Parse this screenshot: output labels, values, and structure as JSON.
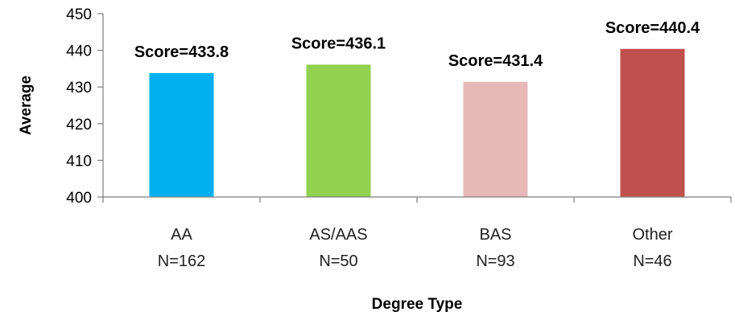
{
  "chart_data": {
    "type": "bar",
    "categories": [
      "AA",
      "AS/AAS",
      "BAS",
      "Other"
    ],
    "category_counts": [
      "N=162",
      "N=50",
      "N=93",
      "N=46"
    ],
    "values": [
      433.8,
      436.1,
      431.4,
      440.4
    ],
    "data_labels": [
      "Score=433.8",
      "Score=436.1",
      "Score=431.4",
      "Score=440.4"
    ],
    "colors": [
      "#00b0f0",
      "#92d050",
      "#e6b9b8",
      "#c0504d"
    ],
    "xlabel": "Degree Type",
    "ylabel": "Average",
    "ylim": [
      400,
      450
    ],
    "yticks": [
      400,
      410,
      420,
      430,
      440,
      450
    ],
    "grid": false,
    "legend": "none"
  }
}
